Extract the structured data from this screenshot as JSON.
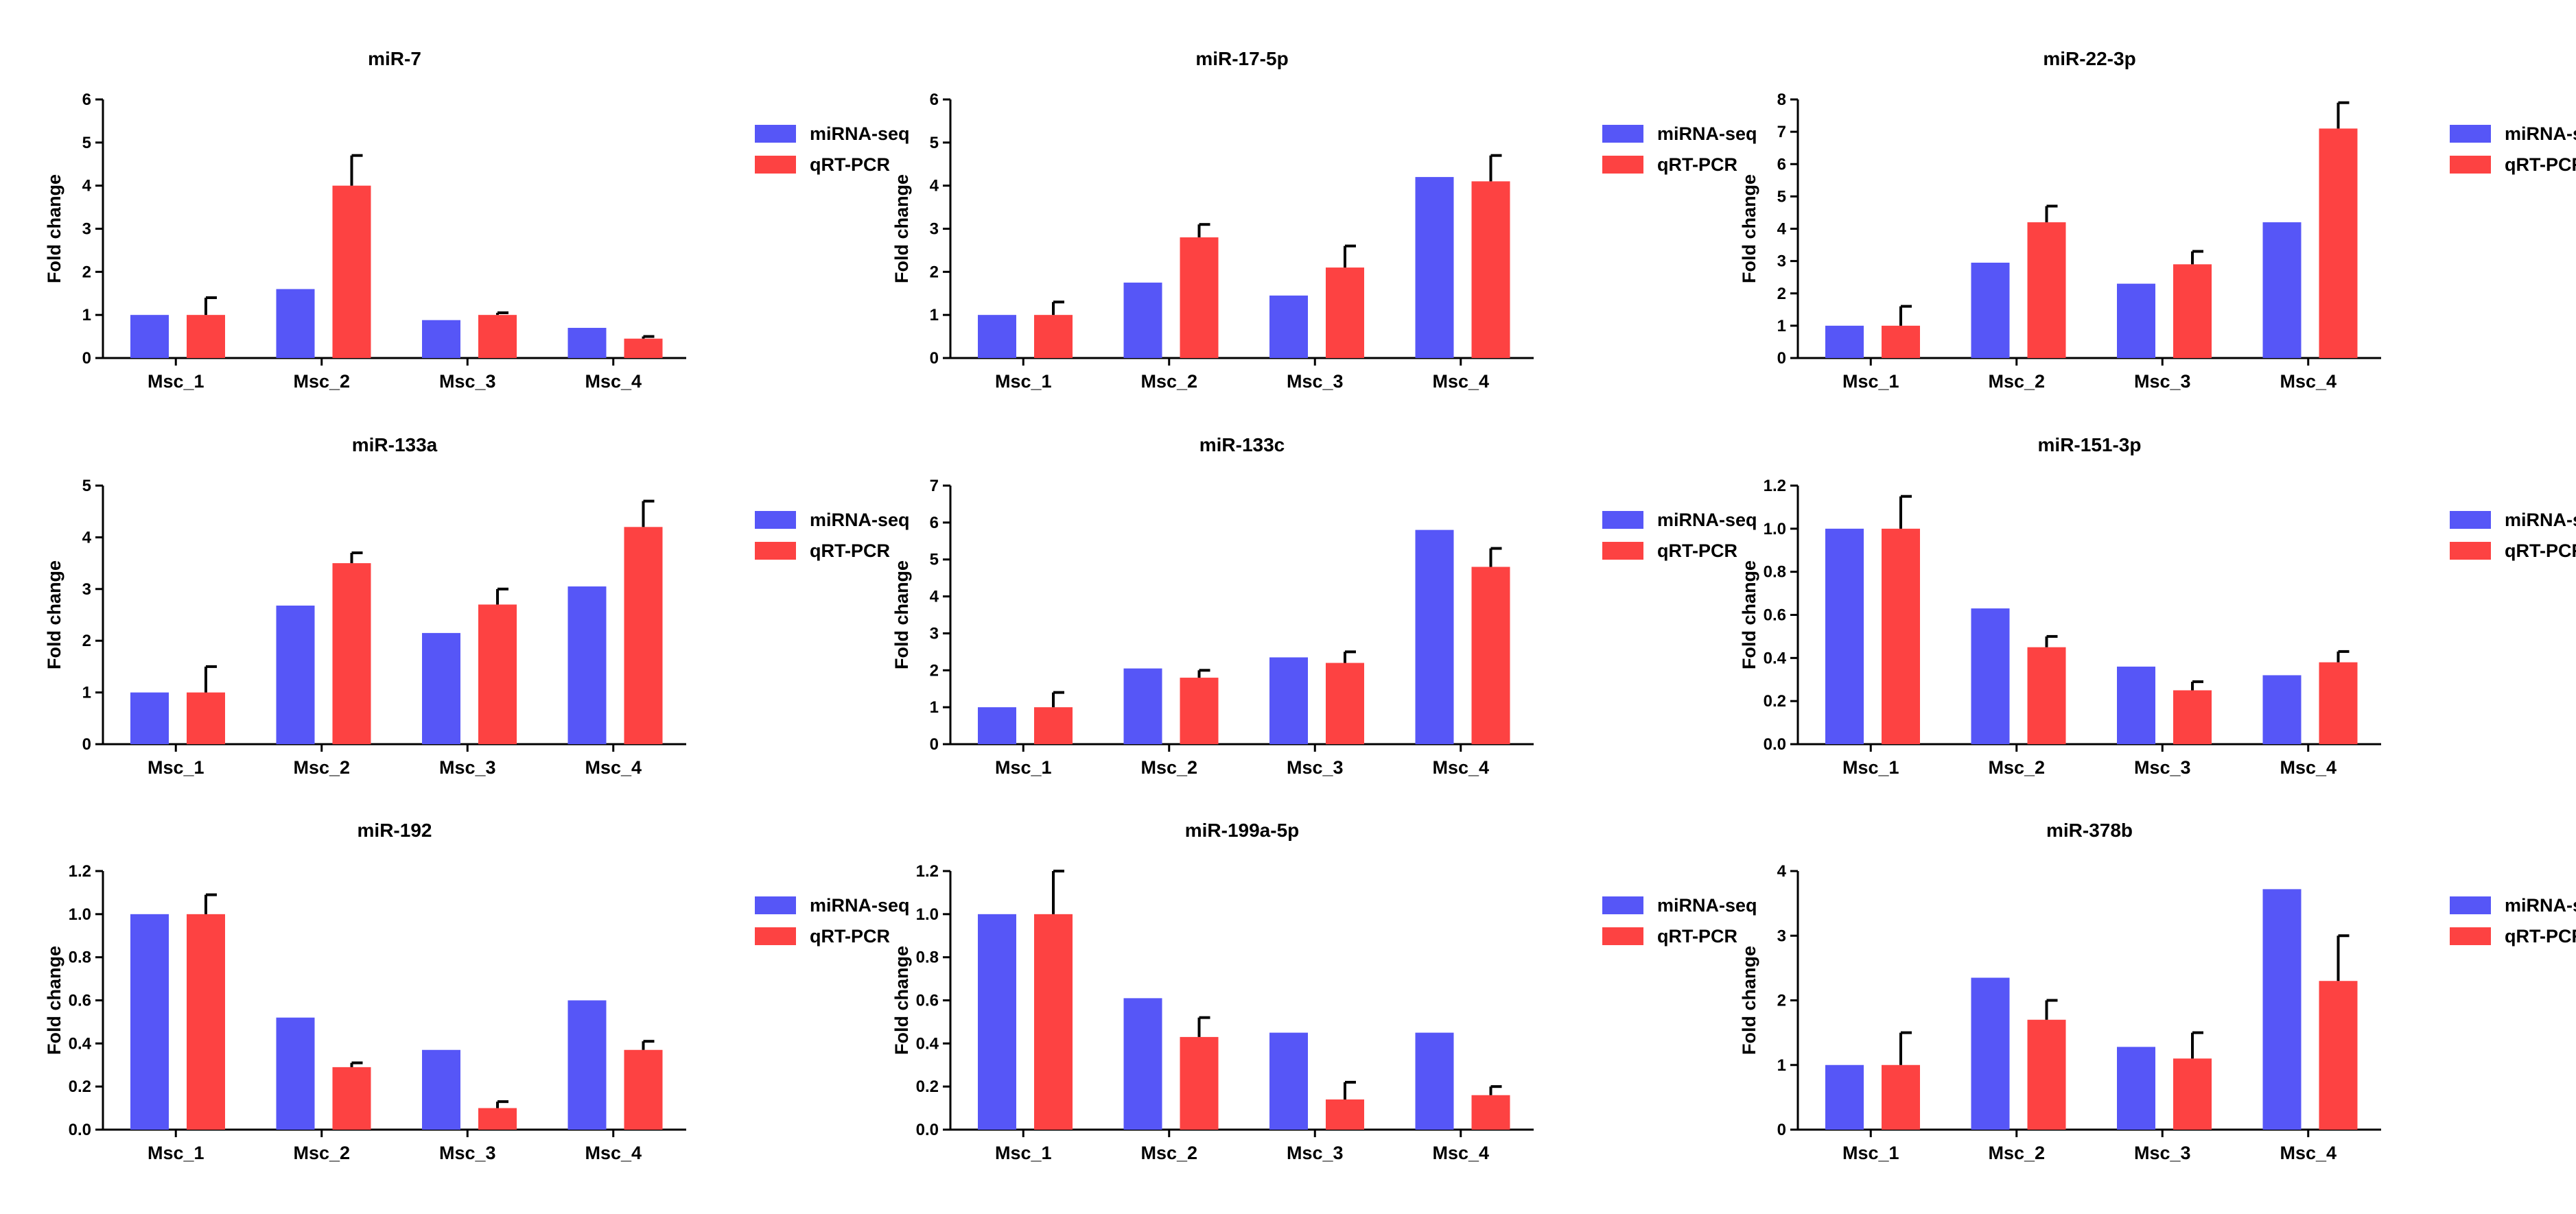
{
  "colors": {
    "miRNA_seq": "#5656f7",
    "qRT_PCR": "#fd4242",
    "axis": "#000000"
  },
  "chart_data": [
    {
      "type": "bar",
      "title": "miR-7",
      "xlabel": "",
      "ylabel": "Fold change",
      "categories": [
        "Msc_1",
        "Msc_2",
        "Msc_3",
        "Msc_4"
      ],
      "ylim": [
        0,
        6
      ],
      "yticks": [
        "0",
        "1",
        "2",
        "3",
        "4",
        "5",
        "6"
      ],
      "series": [
        {
          "name": "miRNA-seq",
          "values": [
            1.0,
            1.6,
            0.88,
            0.7
          ]
        },
        {
          "name": "qRT-PCR",
          "values": [
            1.0,
            4.0,
            1.0,
            0.45
          ],
          "errors": [
            0.4,
            0.7,
            0.05,
            0.05
          ]
        }
      ]
    },
    {
      "type": "bar",
      "title": "miR-17-5p",
      "xlabel": "",
      "ylabel": "Fold change",
      "categories": [
        "Msc_1",
        "Msc_2",
        "Msc_3",
        "Msc_4"
      ],
      "ylim": [
        0,
        6
      ],
      "yticks": [
        "0",
        "1",
        "2",
        "3",
        "4",
        "5",
        "6"
      ],
      "series": [
        {
          "name": "miRNA-seq",
          "values": [
            1.0,
            1.75,
            1.45,
            4.2
          ]
        },
        {
          "name": "qRT-PCR",
          "values": [
            1.0,
            2.8,
            2.1,
            4.1
          ],
          "errors": [
            0.3,
            0.3,
            0.5,
            0.6
          ]
        }
      ]
    },
    {
      "type": "bar",
      "title": "miR-22-3p",
      "xlabel": "",
      "ylabel": "Fold change",
      "categories": [
        "Msc_1",
        "Msc_2",
        "Msc_3",
        "Msc_4"
      ],
      "ylim": [
        0,
        8
      ],
      "yticks": [
        "0",
        "1",
        "2",
        "3",
        "4",
        "5",
        "6",
        "7",
        "8"
      ],
      "series": [
        {
          "name": "miRNA-seq",
          "values": [
            1.0,
            2.95,
            2.3,
            4.2
          ]
        },
        {
          "name": "qRT-PCR",
          "values": [
            1.0,
            4.2,
            2.9,
            7.1
          ],
          "errors": [
            0.6,
            0.5,
            0.4,
            0.8
          ]
        }
      ]
    },
    {
      "type": "bar",
      "title": "miR-133a",
      "xlabel": "",
      "ylabel": "Fold change",
      "categories": [
        "Msc_1",
        "Msc_2",
        "Msc_3",
        "Msc_4"
      ],
      "ylim": [
        0,
        5
      ],
      "yticks": [
        "0",
        "1",
        "2",
        "3",
        "4",
        "5"
      ],
      "series": [
        {
          "name": "miRNA-seq",
          "values": [
            1.0,
            2.68,
            2.15,
            3.05
          ]
        },
        {
          "name": "qRT-PCR",
          "values": [
            1.0,
            3.5,
            2.7,
            4.2
          ],
          "errors": [
            0.5,
            0.2,
            0.3,
            0.5
          ]
        }
      ]
    },
    {
      "type": "bar",
      "title": "miR-133c",
      "xlabel": "",
      "ylabel": "Fold change",
      "categories": [
        "Msc_1",
        "Msc_2",
        "Msc_3",
        "Msc_4"
      ],
      "ylim": [
        0,
        7
      ],
      "yticks": [
        "0",
        "1",
        "2",
        "3",
        "4",
        "5",
        "6",
        "7"
      ],
      "series": [
        {
          "name": "miRNA-seq",
          "values": [
            1.0,
            2.05,
            2.35,
            5.8
          ]
        },
        {
          "name": "qRT-PCR",
          "values": [
            1.0,
            1.8,
            2.2,
            4.8
          ],
          "errors": [
            0.4,
            0.2,
            0.3,
            0.5
          ]
        }
      ]
    },
    {
      "type": "bar",
      "title": "miR-151-3p",
      "xlabel": "",
      "ylabel": "Fold change",
      "categories": [
        "Msc_1",
        "Msc_2",
        "Msc_3",
        "Msc_4"
      ],
      "ylim": [
        0,
        1.2
      ],
      "yticks": [
        "0.0",
        "0.2",
        "0.4",
        "0.6",
        "0.8",
        "1.0",
        "1.2"
      ],
      "series": [
        {
          "name": "miRNA-seq",
          "values": [
            1.0,
            0.63,
            0.36,
            0.32
          ]
        },
        {
          "name": "qRT-PCR",
          "values": [
            1.0,
            0.45,
            0.25,
            0.38
          ],
          "errors": [
            0.15,
            0.05,
            0.04,
            0.05
          ]
        }
      ]
    },
    {
      "type": "bar",
      "title": "miR-192",
      "xlabel": "",
      "ylabel": "Fold change",
      "categories": [
        "Msc_1",
        "Msc_2",
        "Msc_3",
        "Msc_4"
      ],
      "ylim": [
        0,
        1.2
      ],
      "yticks": [
        "0.0",
        "0.2",
        "0.4",
        "0.6",
        "0.8",
        "1.0",
        "1.2"
      ],
      "series": [
        {
          "name": "miRNA-seq",
          "values": [
            1.0,
            0.52,
            0.37,
            0.6
          ]
        },
        {
          "name": "qRT-PCR",
          "values": [
            1.0,
            0.29,
            0.1,
            0.37
          ],
          "errors": [
            0.09,
            0.02,
            0.03,
            0.04
          ]
        }
      ]
    },
    {
      "type": "bar",
      "title": "miR-199a-5p",
      "xlabel": "",
      "ylabel": "Fold change",
      "categories": [
        "Msc_1",
        "Msc_2",
        "Msc_3",
        "Msc_4"
      ],
      "ylim": [
        0,
        1.2
      ],
      "yticks": [
        "0.0",
        "0.2",
        "0.4",
        "0.6",
        "0.8",
        "1.0",
        "1.2"
      ],
      "series": [
        {
          "name": "miRNA-seq",
          "values": [
            1.0,
            0.61,
            0.45,
            0.45
          ]
        },
        {
          "name": "qRT-PCR",
          "values": [
            1.0,
            0.43,
            0.14,
            0.16
          ],
          "errors": [
            0.2,
            0.09,
            0.08,
            0.04
          ]
        }
      ]
    },
    {
      "type": "bar",
      "title": "miR-378b",
      "xlabel": "",
      "ylabel": "Fold change",
      "categories": [
        "Msc_1",
        "Msc_2",
        "Msc_3",
        "Msc_4"
      ],
      "ylim": [
        0,
        4
      ],
      "yticks": [
        "0",
        "1",
        "2",
        "3",
        "4"
      ],
      "series": [
        {
          "name": "miRNA-seq",
          "values": [
            1.0,
            2.35,
            1.28,
            3.72
          ]
        },
        {
          "name": "qRT-PCR",
          "values": [
            1.0,
            1.7,
            1.1,
            2.3
          ],
          "errors": [
            0.5,
            0.3,
            0.4,
            0.7
          ]
        }
      ]
    }
  ]
}
